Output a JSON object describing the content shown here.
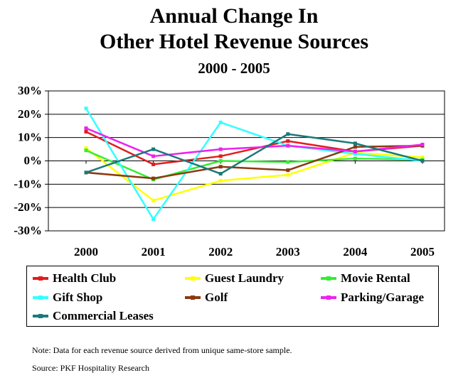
{
  "title_line1": "Annual Change In",
  "title_line2": "Other Hotel Revenue Sources",
  "subtitle": "2000 - 2005",
  "note": "Note: Data for each revenue source derived from unique same-store sample.",
  "source": "Source: PKF Hospitality Research",
  "chart_data": {
    "type": "line",
    "title": "Annual Change In Other Hotel Revenue Sources",
    "subtitle": "2000 - 2005",
    "x": [
      "2000",
      "2001",
      "2002",
      "2003",
      "2004",
      "2005"
    ],
    "ylim": [
      -30,
      30
    ],
    "yticks": [
      -30,
      -20,
      -10,
      0,
      10,
      20,
      30
    ],
    "ytick_labels": [
      "-30%",
      "-20%",
      "-10%",
      "0%",
      "10%",
      "20%",
      "30%"
    ],
    "grid": true,
    "legend_position": "bottom",
    "series": [
      {
        "name": "Health Club",
        "color": "#e21d1d",
        "values": [
          12.5,
          -1.5,
          2.0,
          8.5,
          4.0,
          6.5
        ]
      },
      {
        "name": "Guest Laundry",
        "color": "#ffff00",
        "values": [
          5.5,
          -17.0,
          -8.5,
          -6.0,
          3.5,
          1.5
        ]
      },
      {
        "name": "Movie Rental",
        "color": "#33ee33",
        "values": [
          4.5,
          -8.0,
          0.0,
          -0.5,
          1.0,
          0.5
        ]
      },
      {
        "name": "Gift Shop",
        "color": "#33ffff",
        "values": [
          22.5,
          -25.0,
          16.5,
          6.5,
          3.0,
          0.0
        ]
      },
      {
        "name": "Golf",
        "color": "#8b3a10",
        "values": [
          -5.0,
          -7.5,
          -2.5,
          -4.0,
          6.0,
          6.5
        ]
      },
      {
        "name": "Parking/Garage",
        "color": "#ee22ee",
        "values": [
          14.0,
          2.0,
          5.0,
          6.5,
          4.0,
          7.0
        ]
      },
      {
        "name": "Commercial Leases",
        "color": "#1a7a7a",
        "values": [
          -5.0,
          5.0,
          -5.5,
          11.5,
          7.5,
          0.0
        ]
      }
    ]
  }
}
